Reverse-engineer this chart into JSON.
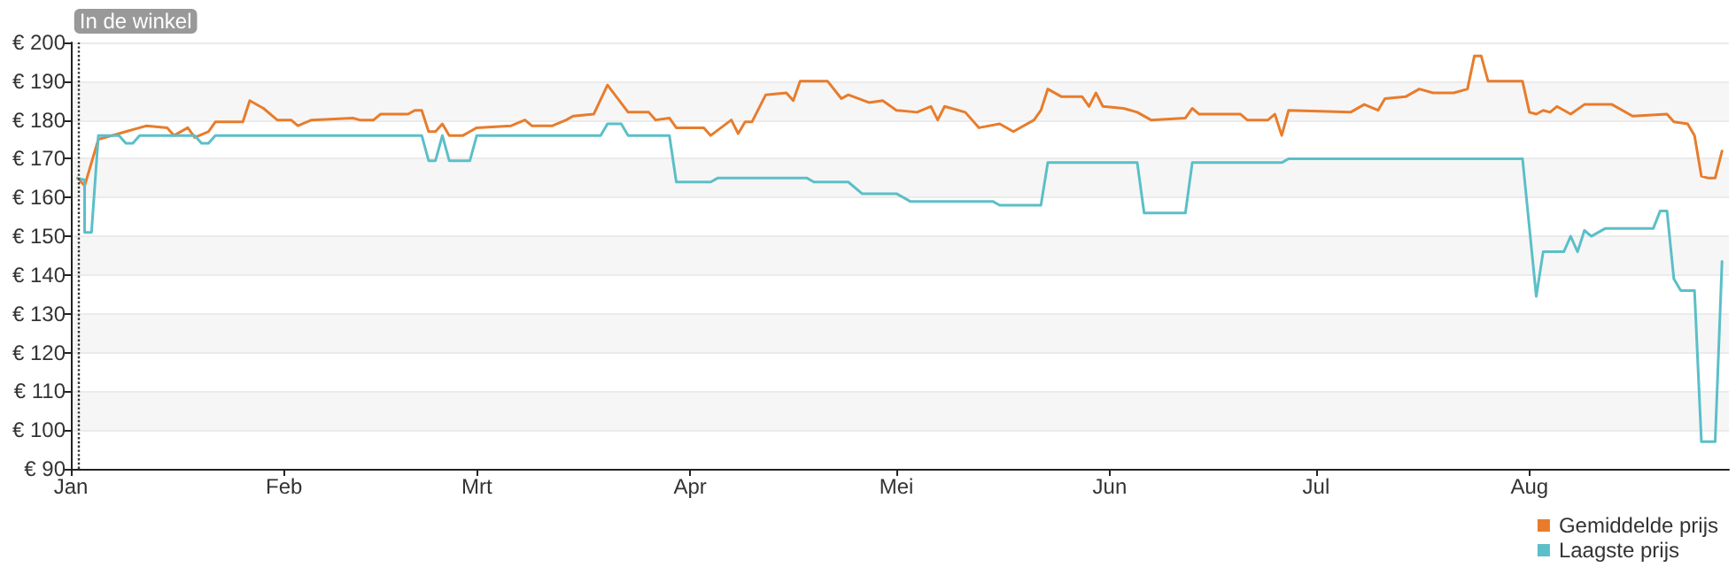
{
  "chart_data": {
    "type": "line",
    "xlim": [
      "--01-01",
      "--08-30"
    ],
    "ylim": [
      90,
      200
    ],
    "xticks": [
      {
        "value": "--01-01",
        "label": "Jan"
      },
      {
        "value": "--02-01",
        "label": "Feb"
      },
      {
        "value": "--03-01",
        "label": "Mrt"
      },
      {
        "value": "--04-01",
        "label": "Apr"
      },
      {
        "value": "--05-01",
        "label": "Mei"
      },
      {
        "value": "--06-01",
        "label": "Jun"
      },
      {
        "value": "--07-01",
        "label": "Jul"
      },
      {
        "value": "--08-01",
        "label": "Aug"
      }
    ],
    "yticks": [
      {
        "value": 90,
        "label": "€ 90"
      },
      {
        "value": 100,
        "label": "€ 100"
      },
      {
        "value": 110,
        "label": "€ 110"
      },
      {
        "value": 120,
        "label": "€ 120"
      },
      {
        "value": 130,
        "label": "€ 130"
      },
      {
        "value": 140,
        "label": "€ 140"
      },
      {
        "value": 150,
        "label": "€ 150"
      },
      {
        "value": 160,
        "label": "€ 160"
      },
      {
        "value": 170,
        "label": "€ 170"
      },
      {
        "value": 180,
        "label": "€ 180"
      },
      {
        "value": 190,
        "label": "€ 190"
      },
      {
        "value": 200,
        "label": "€ 200"
      }
    ],
    "grid": "y",
    "legend": "bottom right",
    "marker": "none",
    "line_style": "solid",
    "ref_lines": [
      {
        "axis": "x",
        "value": "--01-02",
        "label": "In de winkel",
        "line_style": "dotted",
        "color": "#333333"
      }
    ],
    "series": [
      {
        "name": "Gemiddelde prijs",
        "color": "#e87c2c",
        "x": [
          "--01-02",
          "--01-03",
          "--01-05",
          "--01-08",
          "--01-09",
          "--01-11",
          "--01-12",
          "--01-15",
          "--01-16",
          "--01-18",
          "--01-19",
          "--01-21",
          "--01-22",
          "--01-26",
          "--01-27",
          "--01-29",
          "--01-31",
          "--02-02",
          "--02-03",
          "--02-05",
          "--02-11",
          "--02-12",
          "--02-14",
          "--02-15",
          "--02-19",
          "--02-20",
          "--02-21",
          "--02-22",
          "--02-23",
          "--02-24",
          "--02-25",
          "--02-27",
          "--02-28",
          "--03-01",
          "--03-06",
          "--03-08",
          "--03-09",
          "--03-12",
          "--03-14",
          "--03-15",
          "--03-18",
          "--03-20",
          "--03-23",
          "--03-26",
          "--03-27",
          "--03-29",
          "--03-30",
          "--04-03",
          "--04-04",
          "--04-07",
          "--04-08",
          "--04-09",
          "--04-10",
          "--04-12",
          "--04-15",
          "--04-16",
          "--04-17",
          "--04-21",
          "--04-23",
          "--04-24",
          "--04-27",
          "--04-29",
          "--05-01",
          "--05-04",
          "--05-06",
          "--05-07",
          "--05-08",
          "--05-11",
          "--05-13",
          "--05-16",
          "--05-18",
          "--05-21",
          "--05-22",
          "--05-23",
          "--05-25",
          "--05-28",
          "--05-29",
          "--05-30",
          "--05-31",
          "--06-03",
          "--06-05",
          "--06-07",
          "--06-12",
          "--06-13",
          "--06-14",
          "--06-20",
          "--06-21",
          "--06-24",
          "--06-25",
          "--06-26",
          "--06-27",
          "--07-06",
          "--07-08",
          "--07-10",
          "--07-11",
          "--07-14",
          "--07-16",
          "--07-18",
          "--07-21",
          "--07-23",
          "--07-24",
          "--07-25",
          "--07-26",
          "--07-31",
          "--08-01",
          "--08-02",
          "--08-03",
          "--08-04",
          "--08-05",
          "--08-07",
          "--08-09",
          "--08-13",
          "--08-16",
          "--08-21",
          "--08-22",
          "--08-24",
          "--08-25",
          "--08-26",
          "--08-27",
          "--08-28",
          "--08-29"
        ],
        "values": [
          165,
          163,
          175,
          176.5,
          177,
          178,
          178.5,
          178,
          176,
          178,
          175.5,
          177,
          179.5,
          179.5,
          185,
          183,
          180,
          180,
          178.5,
          180,
          180.5,
          180,
          180,
          181.5,
          181.5,
          182.5,
          182.5,
          177,
          177,
          179,
          176,
          176,
          177,
          178,
          178.5,
          180,
          178.5,
          178.5,
          180,
          181,
          181.5,
          189,
          182,
          182,
          180,
          180.5,
          178,
          178,
          176,
          180,
          176.5,
          179.5,
          179.5,
          186.5,
          187,
          185,
          190,
          190,
          185.5,
          186.5,
          184.5,
          185,
          182.5,
          182,
          183.5,
          180,
          183.5,
          182,
          178,
          179,
          177,
          180,
          182.5,
          188,
          186,
          186,
          183.5,
          187,
          183.5,
          183,
          182,
          180,
          180.5,
          183,
          181.5,
          181.5,
          180,
          180,
          181.5,
          176,
          182.5,
          182,
          184,
          182.5,
          185.5,
          186,
          188,
          187,
          187,
          188,
          196.5,
          196.5,
          190,
          190,
          182,
          181.5,
          182.5,
          182,
          183.5,
          181.5,
          184,
          184,
          181,
          181.5,
          179.5,
          179,
          176,
          165.5,
          165,
          165,
          172
        ]
      },
      {
        "name": "Laagste prijs",
        "color": "#5bbfc8",
        "x": [
          "--01-02",
          "--01-03",
          "--01-03",
          "--01-04",
          "--01-05",
          "--01-08",
          "--01-09",
          "--01-10",
          "--01-11",
          "--01-19",
          "--01-20",
          "--01-21",
          "--01-22",
          "--02-21",
          "--02-22",
          "--02-23",
          "--02-24",
          "--02-25",
          "--02-28",
          "--03-01",
          "--03-19",
          "--03-20",
          "--03-22",
          "--03-23",
          "--03-29",
          "--03-30",
          "--04-04",
          "--04-05",
          "--04-18",
          "--04-19",
          "--04-24",
          "--04-26",
          "--05-01",
          "--05-03",
          "--05-15",
          "--05-16",
          "--05-22",
          "--05-23",
          "--06-05",
          "--06-06",
          "--06-12",
          "--06-13",
          "--06-26",
          "--06-27",
          "--07-31",
          "--08-02",
          "--08-03",
          "--08-06",
          "--08-07",
          "--08-08",
          "--08-09",
          "--08-10",
          "--08-12",
          "--08-19",
          "--08-20",
          "--08-21",
          "--08-22",
          "--08-23",
          "--08-25",
          "--08-26",
          "--08-28",
          "--08-29"
        ],
        "values": [
          165,
          164.5,
          151,
          151,
          176,
          176,
          174,
          174,
          176,
          176,
          174,
          174,
          176,
          176,
          169.5,
          169.5,
          176,
          169.5,
          169.5,
          176,
          176,
          179,
          179,
          176,
          176,
          164,
          164,
          165,
          165,
          164,
          164,
          161,
          161,
          159,
          159,
          158,
          158,
          169,
          169,
          156,
          156,
          169,
          169,
          170,
          170,
          134.5,
          146,
          146,
          150,
          146,
          151.5,
          150,
          152,
          152,
          156.5,
          156.5,
          139,
          136,
          136,
          97,
          97,
          143.5
        ]
      }
    ]
  }
}
